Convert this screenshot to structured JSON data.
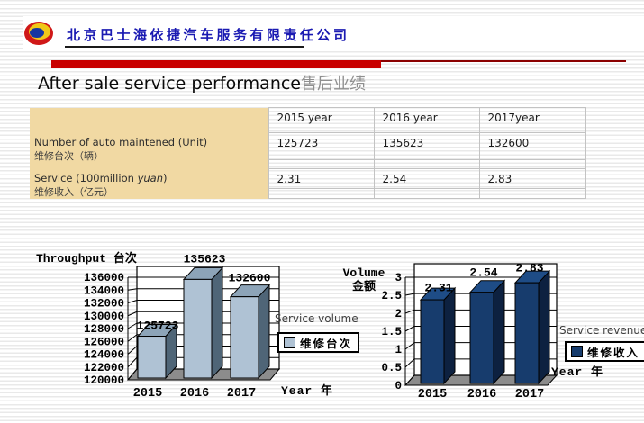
{
  "header": {
    "company_name": "北京巴士海依捷汽车服务有限责任公司",
    "logo": "company-logo-swirl"
  },
  "title": {
    "en": "After sale service performance",
    "zh": "售后业绩"
  },
  "table": {
    "col_headers": [
      "2015 year",
      "2016 year",
      "2017year"
    ],
    "rows": [
      {
        "label_parts": [
          "Number of auto maintened (Unit)",
          "",
          ""
        ],
        "label_zh": "维修台次（辆）",
        "values": [
          "125723",
          "135623",
          "132600"
        ]
      },
      {
        "label_parts": [
          "Service (100million ",
          "yuan",
          ")"
        ],
        "label_zh": "维修收入（亿元）",
        "values": [
          "2.31",
          "2.54",
          "2.83"
        ]
      }
    ]
  },
  "chart_data": [
    {
      "type": "bar",
      "title": "Throughput 台次",
      "categories": [
        "2015",
        "2016",
        "2017"
      ],
      "values": [
        125723,
        135623,
        132600
      ],
      "data_labels": [
        "125723",
        "135623",
        "132600"
      ],
      "ylim": [
        120000,
        136000
      ],
      "yticks": [
        120000,
        122000,
        124000,
        126000,
        128000,
        130000,
        132000,
        134000,
        136000
      ],
      "ytick_labels": [
        "120000",
        "122000",
        "124000",
        "126000",
        "128000",
        "130000",
        "132000",
        "134000",
        "136000"
      ],
      "xlabel": "Year 年",
      "annotation": "Service volume",
      "legend": [
        "维修台次"
      ],
      "legend_position": "right",
      "grid": true,
      "style": "3d-bar",
      "colors": {
        "front": "#afc2d4",
        "top": "#8da4b8",
        "side": "#4f6577"
      }
    },
    {
      "type": "bar",
      "title": "Volume",
      "title_line2": "金额",
      "categories": [
        "2015",
        "2016",
        "2017"
      ],
      "values": [
        2.31,
        2.54,
        2.83
      ],
      "data_labels": [
        "2.31",
        "2.54",
        "2.83"
      ],
      "ylim": [
        0,
        3
      ],
      "yticks": [
        0,
        0.5,
        1,
        1.5,
        2,
        2.5,
        3
      ],
      "ytick_labels": [
        "0",
        "0.5",
        "1",
        "1.5",
        "2",
        "2.5",
        "3"
      ],
      "xlabel": "Year 年",
      "annotation": "Service revenue",
      "legend": [
        "维修收入"
      ],
      "legend_position": "right",
      "grid": true,
      "style": "3d-bar",
      "colors": {
        "front": "#173c6d",
        "top": "#1e4c86",
        "side": "#0d2140"
      }
    }
  ],
  "colors": {
    "accent_red": "#c80000",
    "dark_red": "#8b0000",
    "company_blue": "#1a1ab2",
    "table_label_bg": "#f1d9a3",
    "floor_gray": "#8c8c8c"
  }
}
